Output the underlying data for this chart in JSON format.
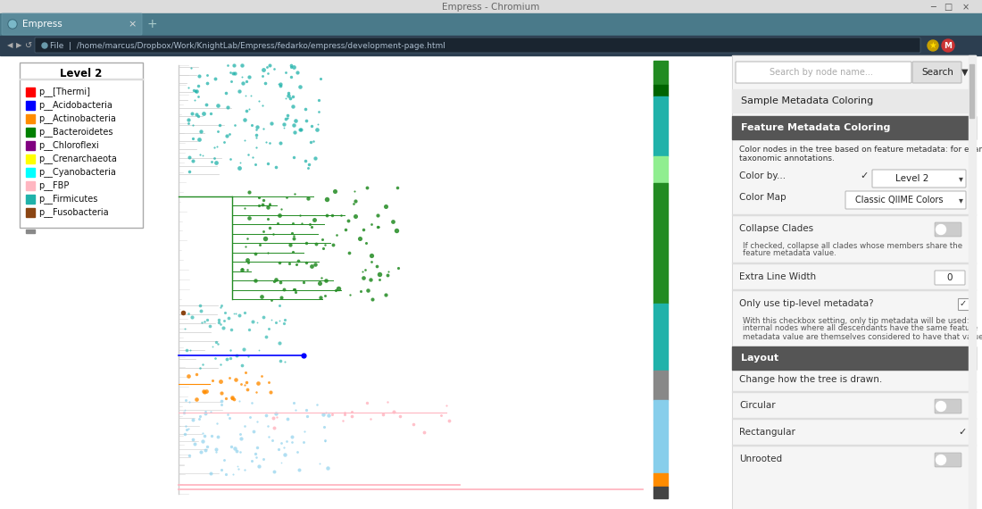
{
  "window_title": "Empress - Chromium",
  "tab_title": "Empress",
  "url": "File  |  /home/marcus/Dropbox/Work/KnightLab/Empress/fedarko/empress/development-page.html",
  "bg_color": "#ffffff",
  "browser_titlebar_bg": "#dcdcdc",
  "browser_titlebar_text": "#666666",
  "tab_bar_bg": "#4a7a8a",
  "tab_bg": "#5a8a9a",
  "tab_text": "#ffffff",
  "url_bar_bg": "#2c3e50",
  "url_box_bg": "#1a2530",
  "url_text": "#ccddee",
  "legend_title": "Level 2",
  "legend_items": [
    {
      "label": "p__[Thermi]",
      "color": "#ff0000"
    },
    {
      "label": "p__Acidobacteria",
      "color": "#0000ff"
    },
    {
      "label": "p__Actinobacteria",
      "color": "#ff8c00"
    },
    {
      "label": "p__Bacteroidetes",
      "color": "#008000"
    },
    {
      "label": "p__Chloroflexi",
      "color": "#800080"
    },
    {
      "label": "p__Crenarchaeota",
      "color": "#ffff00"
    },
    {
      "label": "p__Cyanobacteria",
      "color": "#00ffff"
    },
    {
      "label": "p__FBP",
      "color": "#ffb6c1"
    },
    {
      "label": "p__Firmicutes",
      "color": "#20b2aa"
    },
    {
      "label": "p__Fusobacteria",
      "color": "#8b4513"
    }
  ],
  "tree_colors": {
    "teal": "#20b2aa",
    "green": "#228b22",
    "lblue": "#87ceeb",
    "orange": "#ff8c00",
    "pink": "#ffb6c1",
    "dblue": "#0000ff",
    "gray": "#cccccc",
    "brown": "#8b4513"
  },
  "rp_bg": "#f5f5f5",
  "search_placeholder": "Search by node name...",
  "search_btn": "Search",
  "sec_sample": "Sample Metadata Coloring",
  "sec_sample_bg": "#e8e8e8",
  "sec_feature": "Feature Metadata Coloring",
  "sec_feature_bg": "#555555",
  "color_by_label": "Color by...",
  "color_by_value": "Level 2",
  "color_map_label": "Color Map",
  "color_map_value": "Classic QIIME Colors",
  "collapse_label": "Collapse Clades",
  "extra_lw_label": "Extra Line Width",
  "extra_lw_value": "0",
  "only_tip_label": "Only use tip-level metadata?",
  "layout_label": "Layout",
  "change_tree_label": "Change how the tree is drawn.",
  "circular_label": "Circular",
  "rect_label": "Rectangular",
  "unrooted_label": "Unrooted"
}
